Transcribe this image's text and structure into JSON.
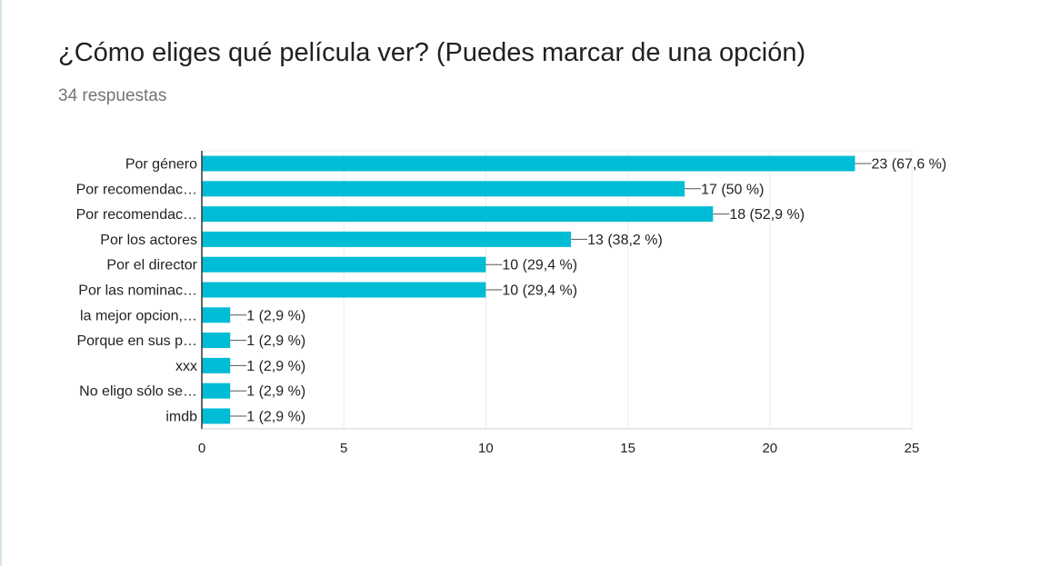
{
  "header": {
    "title": "¿Cómo eliges qué película ver? (Puedes marcar de una opción)",
    "subtitle": "34 respuestas"
  },
  "colors": {
    "bar": "#00bcd4",
    "grid": "#ececec",
    "axis": "#333333",
    "text": "#222222"
  },
  "chart_data": {
    "type": "bar",
    "orientation": "horizontal",
    "categories": [
      "Por género",
      "Por recomendac…",
      "Por recomendac…",
      "Por los actores",
      "Por el director",
      "Por las nominac…",
      "la mejor opcion,…",
      "Porque en sus p…",
      "xxx",
      "No eligo sólo se…",
      "imdb"
    ],
    "values": [
      23,
      17,
      18,
      13,
      10,
      10,
      1,
      1,
      1,
      1,
      1
    ],
    "data_labels": [
      "23 (67,6 %)",
      "17 (50 %)",
      "18 (52,9 %)",
      "13 (38,2 %)",
      "10 (29,4 %)",
      "10 (29,4 %)",
      "1 (2,9 %)",
      "1 (2,9 %)",
      "1 (2,9 %)",
      "1 (2,9 %)",
      "1 (2,9 %)"
    ],
    "xlim": [
      0,
      25
    ],
    "xticks": [
      "0",
      "5",
      "10",
      "15",
      "20",
      "25"
    ],
    "grid": true,
    "legend": "none"
  }
}
